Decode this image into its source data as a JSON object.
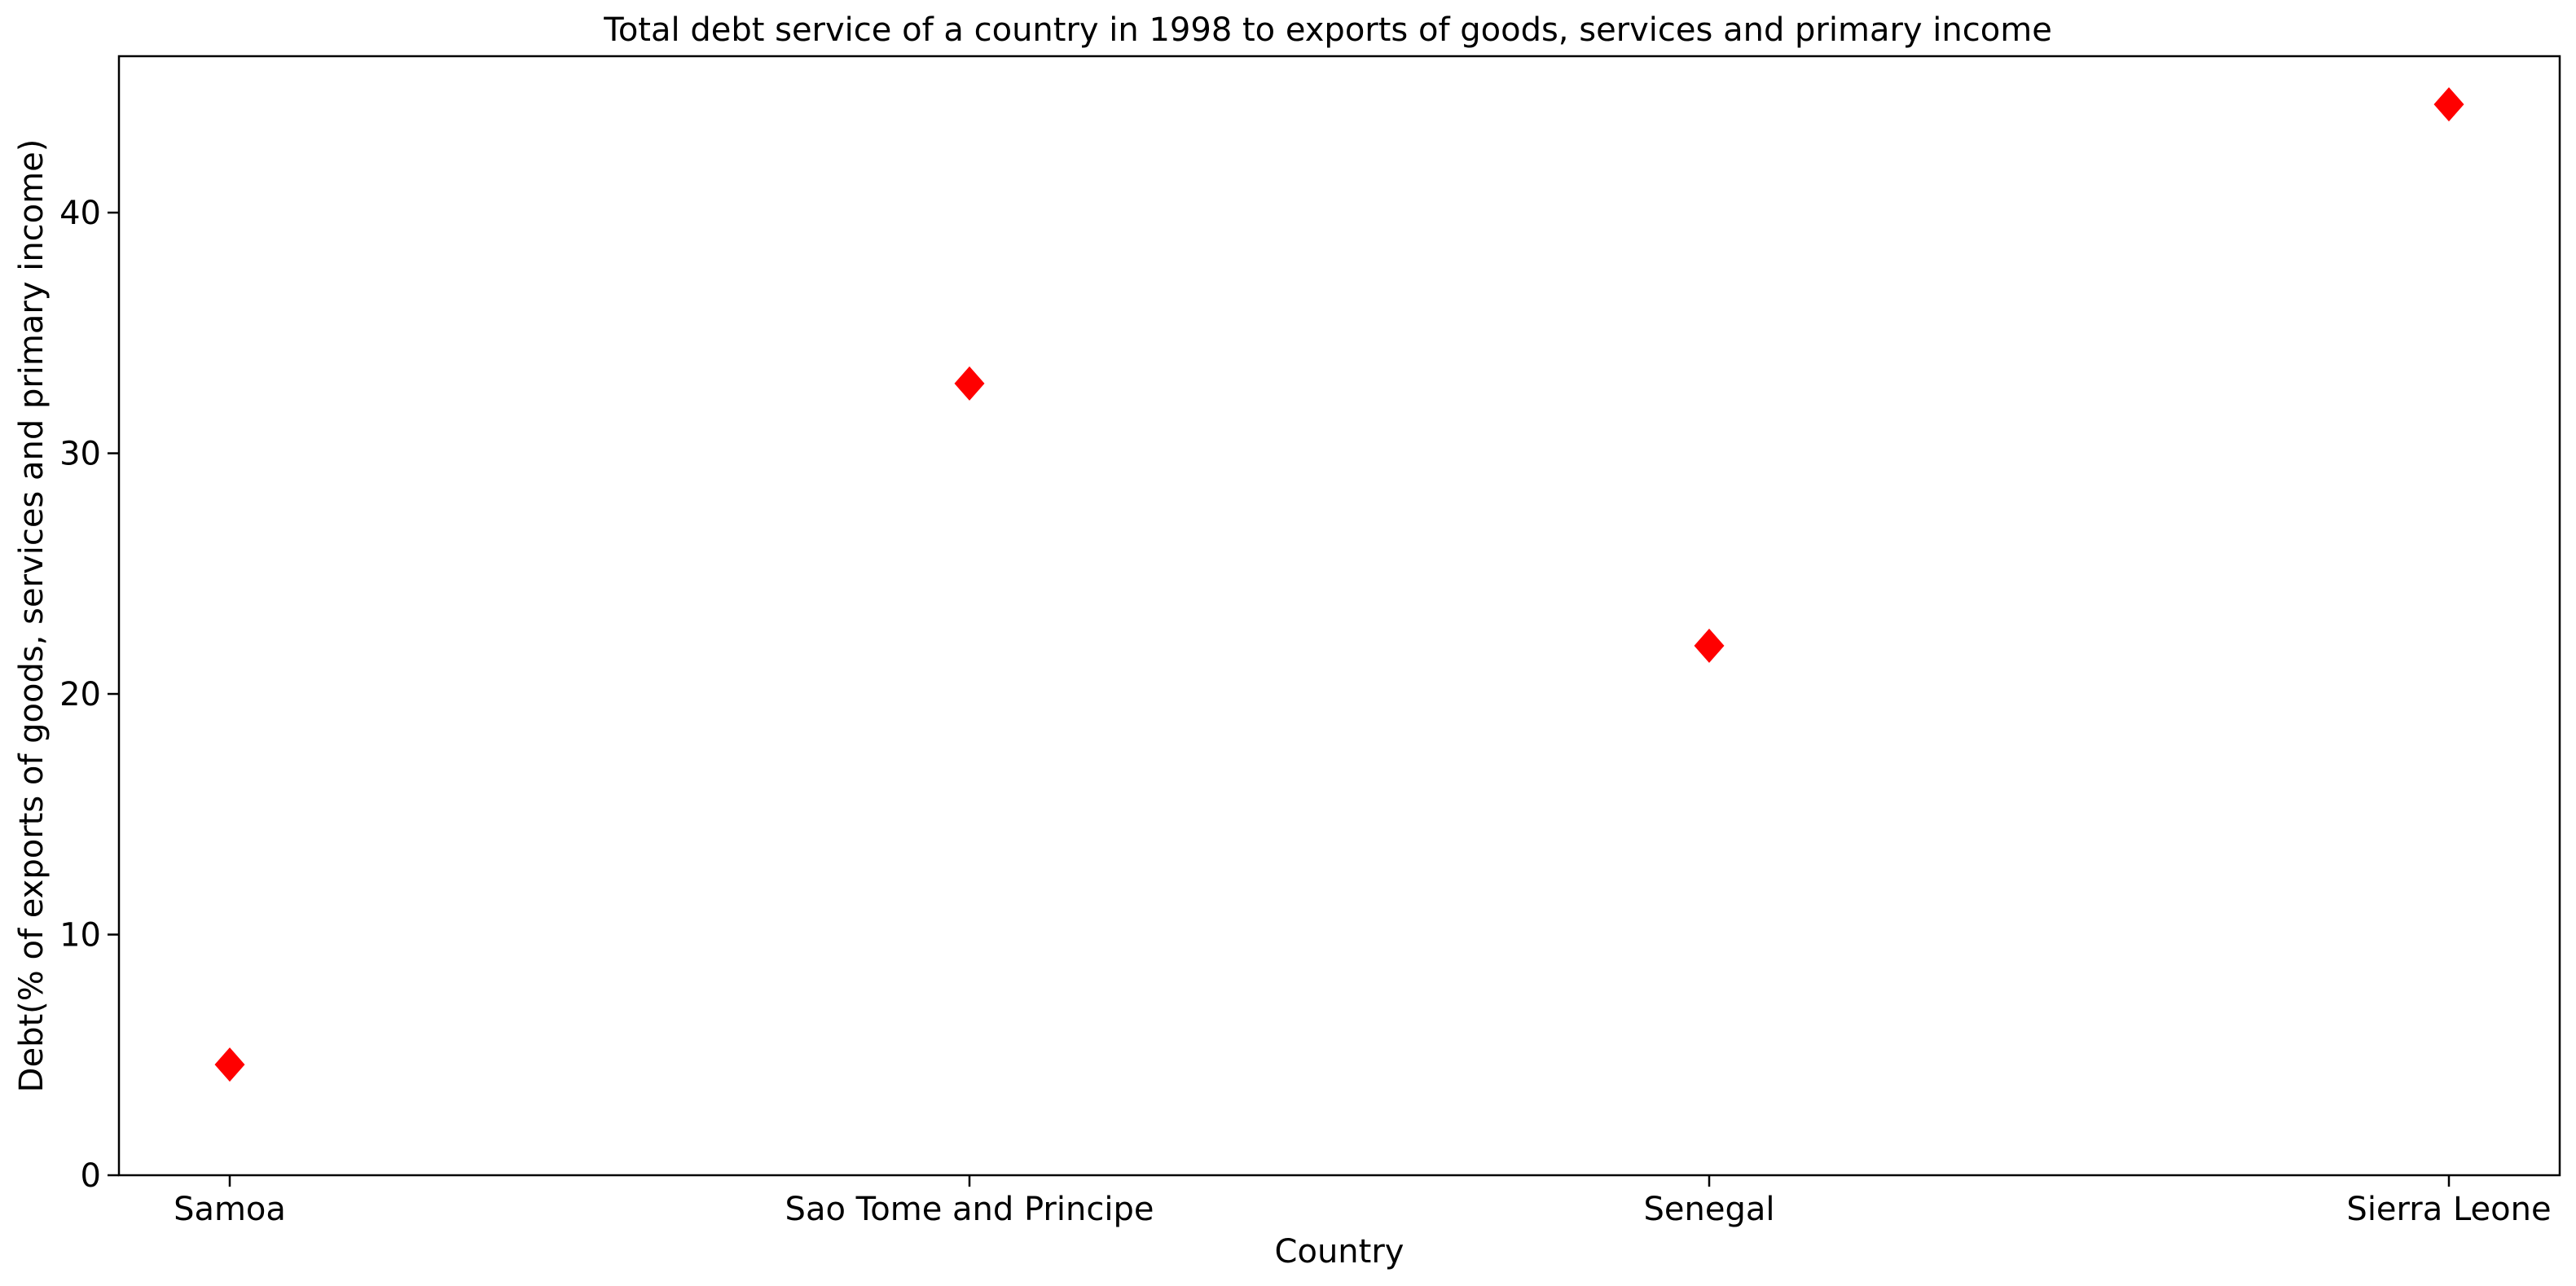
{
  "chart_data": {
    "type": "scatter",
    "title": "Total debt service of a country in 1998 to exports of goods, services and primary income",
    "xlabel": "Country",
    "ylabel": "Debt(% of exports of goods, services and primary income)",
    "categories": [
      "Samoa",
      "Sao Tome and Principe",
      "Senegal",
      "Sierra Leone"
    ],
    "series": [
      {
        "values": [
          4.6,
          32.9,
          22.0,
          44.5
        ],
        "color": "#ff0000",
        "marker": "diamond"
      }
    ],
    "ylim": [
      0,
      46.5
    ],
    "yticks": [
      0,
      10,
      20,
      30,
      40
    ],
    "grid": false,
    "legend": "none"
  }
}
